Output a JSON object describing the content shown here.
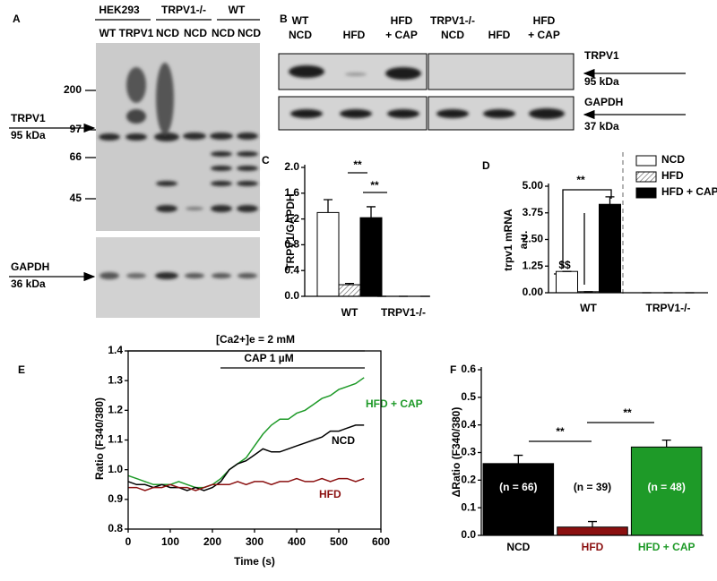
{
  "panel_a": {
    "label": "A",
    "groups": [
      "HEK293",
      "TRPV1-/-",
      "WT"
    ],
    "lanes": [
      "WT",
      "TRPV1",
      "NCD",
      "NCD",
      "NCD",
      "NCD"
    ],
    "markers": [
      "200",
      "97",
      "66",
      "45"
    ],
    "bands": [
      {
        "name": "TRPV1",
        "size": "95 kDa"
      },
      {
        "name": "GAPDH",
        "size": "36 kDa"
      }
    ]
  },
  "panel_b": {
    "label": "B",
    "lanes": [
      [
        "WT",
        "NCD"
      ],
      [
        "HFD"
      ],
      [
        "HFD",
        "+ CAP"
      ],
      [
        "TRPV1-/-",
        "NCD"
      ],
      [
        "HFD"
      ],
      [
        "HFD",
        "+ CAP"
      ]
    ],
    "bands": [
      {
        "name": "TRPV1",
        "size": "95 kDa"
      },
      {
        "name": "GAPDH",
        "size": "37 kDa"
      }
    ]
  },
  "chart_data": [
    {
      "panel": "C",
      "type": "bar",
      "y_label": "TRPV1/GAPDH",
      "categories": [
        "WT",
        "TRPV1-/-"
      ],
      "series": [
        {
          "color": "#ffffff",
          "values": [
            1.3,
            0
          ],
          "errors": [
            0.2,
            0
          ]
        },
        {
          "color": "#ffffff",
          "pattern": "hatch",
          "values": [
            0.18,
            0
          ],
          "errors": [
            0.02,
            0
          ]
        },
        {
          "color": "#000000",
          "values": [
            1.22,
            0
          ],
          "errors": [
            0.17,
            0
          ]
        }
      ],
      "ylim": [
        0,
        2
      ],
      "yticks": [
        {
          "value": 0,
          "label": "0.0"
        },
        0.4,
        0.8,
        1.2,
        1.6,
        {
          "value": 2,
          "label": "2.0"
        }
      ],
      "annotations": [
        "**",
        "**"
      ]
    },
    {
      "panel": "D",
      "type": "bar",
      "y_label": [
        "trpv1 mRNA",
        "a.u."
      ],
      "categories": [
        "WT",
        "TRPV1-/-"
      ],
      "series": [
        {
          "name": "NCD",
          "color": "#ffffff",
          "values": [
            1.0,
            0
          ],
          "errors": [
            0,
            0
          ]
        },
        {
          "name": "HFD",
          "color": "#ffffff",
          "pattern": "hatch",
          "values": [
            0.05,
            0
          ],
          "errors": [
            0,
            0
          ]
        },
        {
          "name": "HFD + CAP",
          "color": "#000000",
          "values": [
            4.15,
            0
          ],
          "errors": [
            0.35,
            0
          ]
        }
      ],
      "ylim": [
        0,
        5
      ],
      "yticks": [
        {
          "value": 0,
          "label": "0.00"
        },
        {
          "value": 1.25,
          "label": "1.25"
        },
        {
          "value": 2.5,
          "label": "2.50"
        },
        {
          "value": 3.75,
          "label": "3.75"
        },
        {
          "value": 5,
          "label": "5.00"
        }
      ],
      "annotations": [
        "**",
        "$$"
      ]
    },
    {
      "panel": "E",
      "type": "line",
      "x_label": "Time (s)",
      "y_label": "Ratio (F340/380)",
      "x": [
        0,
        20,
        40,
        60,
        80,
        100,
        120,
        140,
        160,
        180,
        200,
        220,
        240,
        260,
        280,
        300,
        320,
        340,
        360,
        380,
        400,
        420,
        440,
        460,
        480,
        500,
        520,
        540,
        560
      ],
      "series": [
        {
          "name": "HFD + CAP",
          "color": "#1e9a28",
          "values": [
            0.98,
            0.97,
            0.96,
            0.95,
            0.95,
            0.95,
            0.96,
            0.95,
            0.94,
            0.94,
            0.95,
            0.97,
            1.0,
            1.02,
            1.04,
            1.08,
            1.12,
            1.15,
            1.17,
            1.17,
            1.19,
            1.2,
            1.22,
            1.24,
            1.25,
            1.27,
            1.28,
            1.29,
            1.31
          ]
        },
        {
          "name": "NCD",
          "color": "#000000",
          "values": [
            0.96,
            0.95,
            0.95,
            0.94,
            0.95,
            0.94,
            0.94,
            0.93,
            0.94,
            0.93,
            0.94,
            0.96,
            1.0,
            1.02,
            1.03,
            1.05,
            1.07,
            1.06,
            1.06,
            1.07,
            1.08,
            1.09,
            1.1,
            1.11,
            1.13,
            1.13,
            1.14,
            1.15,
            1.15
          ]
        },
        {
          "name": "HFD",
          "color": "#8b1010",
          "values": [
            0.94,
            0.94,
            0.93,
            0.94,
            0.94,
            0.95,
            0.94,
            0.94,
            0.93,
            0.94,
            0.95,
            0.95,
            0.95,
            0.96,
            0.95,
            0.96,
            0.96,
            0.95,
            0.96,
            0.96,
            0.97,
            0.96,
            0.96,
            0.97,
            0.96,
            0.97,
            0.97,
            0.96,
            0.97
          ]
        }
      ],
      "xlim": [
        0,
        600
      ],
      "xticks": [
        0,
        100,
        200,
        300,
        400,
        500,
        600
      ],
      "ylim": [
        0.8,
        1.4
      ],
      "yticks": [
        0.8,
        0.9,
        {
          "value": 1,
          "label": "1.0"
        },
        1.1,
        1.2,
        1.3,
        1.4
      ],
      "annotations": [
        "[Ca2+]e = 2 mM",
        "CAP 1 µM"
      ]
    },
    {
      "panel": "F",
      "type": "bar",
      "y_label": "ΔRatio (F340/380)",
      "categories": [
        "NCD",
        "HFD",
        "HFD + CAP"
      ],
      "colors": [
        "#000000",
        "#8b1010",
        "#1e9a28"
      ],
      "values": [
        0.26,
        0.03,
        0.32
      ],
      "errors": [
        0.03,
        0.02,
        0.025
      ],
      "bar_labels": [
        "(n = 66)",
        "(n = 39)",
        "(n = 48)"
      ],
      "ylim": [
        0,
        0.6
      ],
      "yticks": [
        {
          "value": 0,
          "label": "0.0"
        },
        0.1,
        0.2,
        0.3,
        0.4,
        0.5,
        0.6
      ],
      "annotations": [
        "**",
        "**"
      ]
    }
  ]
}
